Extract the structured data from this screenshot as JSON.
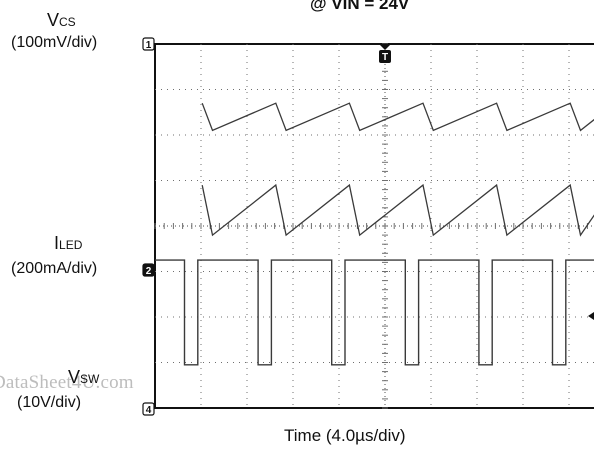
{
  "title": "@ VIN = 24V",
  "channels": [
    {
      "id": "ch1",
      "name_main": "V",
      "name_sub": "CS",
      "scale": "(100mV/div)",
      "marker": "1"
    },
    {
      "id": "ch2",
      "name_main": "I",
      "name_sub": "LED",
      "scale": "(200mA/div)",
      "marker": "2"
    },
    {
      "id": "ch4",
      "name_main": "V",
      "name_sub": "SW",
      "scale": "(10V/div)",
      "marker": "4"
    }
  ],
  "trigger_marker": "T",
  "x_axis_label": "Time (4.0µs/div)",
  "watermark": "DataSheet4U.com",
  "colors": {
    "trace": "#3a3a3a",
    "grid": "#6f6f6f",
    "frame": "#111111"
  },
  "chart_data": {
    "type": "line",
    "title": "@ VIN = 24V",
    "xlabel": "Time (4.0µs/div)",
    "grid": true,
    "x_divisions": 10,
    "y_divisions": 8,
    "time_per_div_us": 4.0,
    "switching_period_us": 6.4,
    "series": [
      {
        "name": "VCS",
        "scale": "100mV/div",
        "waveform": "sawtooth ramp with sharp drop, upper and lower traces",
        "upper_ramp_div": [
          1.3,
          1.9
        ],
        "lower_ramp_div": [
          3.1,
          4.2
        ]
      },
      {
        "name": "ILED",
        "scale": "200mA/div",
        "waveform": "pulse train, high level with short low dips",
        "high_div": 4.75,
        "low_div": 7.05,
        "low_duty": 0.18
      },
      {
        "name": "VSW",
        "scale": "10V/div",
        "waveform": "ground reference marker at bottom",
        "level_div": 8.0
      }
    ]
  }
}
